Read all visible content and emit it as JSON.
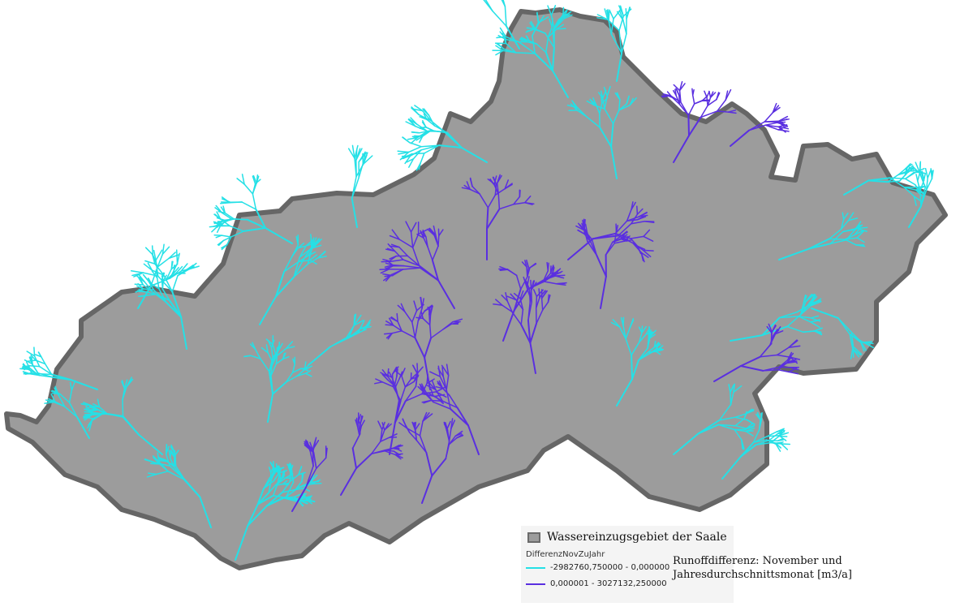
{
  "colors": {
    "background": "#ffffff",
    "catchment_fill": "#9c9c9c",
    "catchment_border": "#666666",
    "negative_class": "#25e0e6",
    "positive_class": "#5a2fe0"
  },
  "legend": {
    "catchment_label": "Wassereinzugsgebiet der Saale",
    "field_name": "DifferenzNovZuJahr",
    "classes": [
      {
        "label": "-2982760,750000 - 0,000000",
        "color": "#25e0e6"
      },
      {
        "label": "0,000001 - 3027132,250000",
        "color": "#5a2fe0"
      }
    ]
  },
  "note": {
    "line1": "Runoffdifferenz: November und",
    "line2": "Jahresdurchschnittsmonat [m3/a]"
  }
}
